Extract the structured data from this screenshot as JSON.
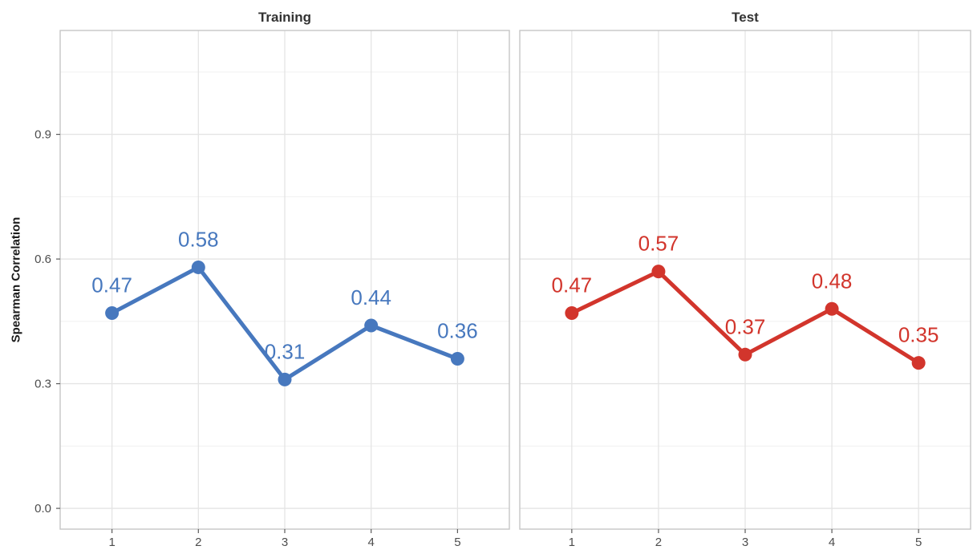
{
  "chart_data": {
    "type": "line",
    "title": "",
    "ylabel": "Spearman Correlation",
    "xlabel": "",
    "categories": [
      1,
      2,
      3,
      4,
      5
    ],
    "xtick_labels": [
      "1",
      "2",
      "3",
      "4",
      "5"
    ],
    "facets": [
      {
        "title": "Training",
        "color": "#4778BE",
        "values": [
          0.47,
          0.58,
          0.31,
          0.44,
          0.36
        ],
        "point_labels": [
          "0.47",
          "0.58",
          "0.31",
          "0.44",
          "0.36"
        ]
      },
      {
        "title": "Test",
        "color": "#D2352C",
        "values": [
          0.47,
          0.57,
          0.37,
          0.48,
          0.35
        ],
        "point_labels": [
          "0.47",
          "0.57",
          "0.37",
          "0.48",
          "0.35"
        ]
      }
    ],
    "yticks": [
      0.0,
      0.3,
      0.6,
      0.9
    ],
    "ytick_labels": [
      "0.0",
      "0.3",
      "0.6",
      "0.9"
    ],
    "minor_yticks": [
      0.15,
      0.45,
      0.75,
      1.05
    ],
    "ylim": [
      -0.05,
      1.15
    ],
    "xlim": [
      0.4,
      5.6
    ],
    "grid": true,
    "legend": "none",
    "colors": {
      "background": "#FFFFFF",
      "panel_border": "#C6C6C6",
      "grid_major": "#E4E4E4",
      "grid_minor": "#F0F0F0",
      "tick_mark": "#5A5A5A",
      "tick_label": "#4D4D4D",
      "facet_title": "#333333"
    }
  }
}
